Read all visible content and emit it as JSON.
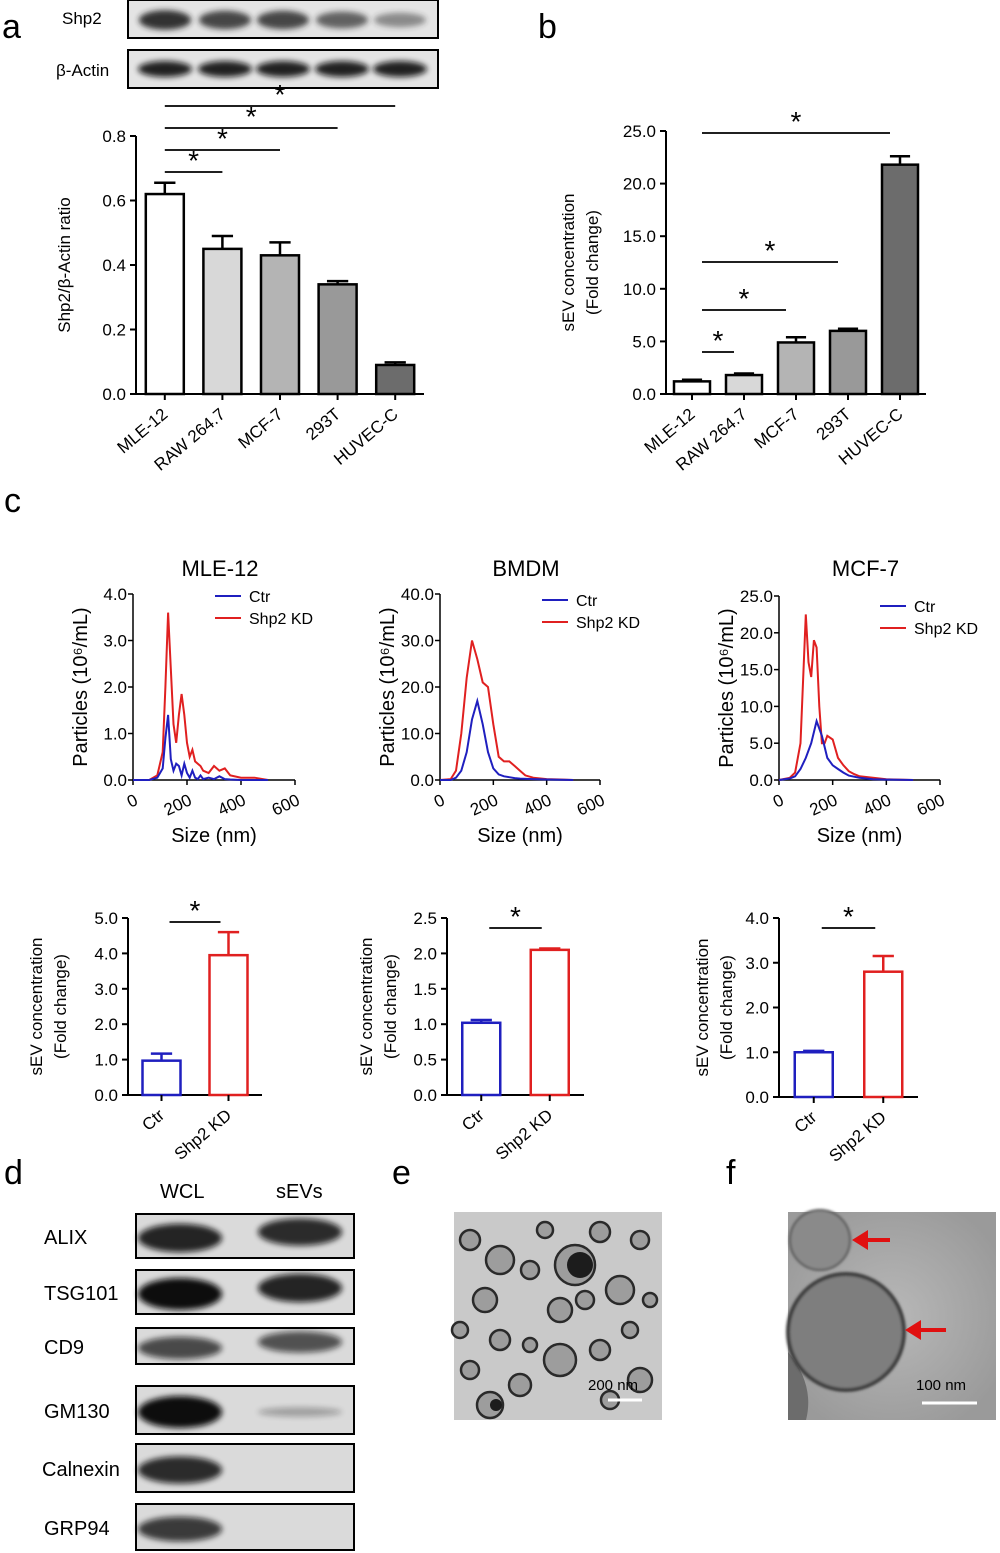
{
  "panel_labels": {
    "a": "a",
    "b": "b",
    "c": "c",
    "d": "d",
    "e": "e",
    "f": "f"
  },
  "colors": {
    "ctr": "#1f1fbf",
    "kd": "#e02020",
    "arrow": "#e01010"
  },
  "blot_a": {
    "rows": [
      "Shp2",
      "β-Actin"
    ]
  },
  "blot_d": {
    "columns": [
      "WCL",
      "sEVs"
    ],
    "rows": [
      "ALIX",
      "TSG101",
      "CD9",
      "GM130",
      "Calnexin",
      "GRP94"
    ],
    "intensity": [
      [
        0.85,
        0.8
      ],
      [
        1.0,
        0.85
      ],
      [
        0.6,
        0.55
      ],
      [
        1.0,
        0.05
      ],
      [
        0.8,
        0.03
      ],
      [
        0.7,
        0.03
      ]
    ]
  },
  "micrographs": {
    "e_scale": "200 nm",
    "f_scale": "100 nm"
  },
  "chart_data": [
    {
      "id": "a",
      "type": "bar",
      "categories": [
        "MLE-12",
        "RAW 264.7",
        "MCF-7",
        "293T",
        "HUVEC-C"
      ],
      "values": [
        0.62,
        0.45,
        0.43,
        0.34,
        0.09
      ],
      "errors": [
        0.035,
        0.04,
        0.04,
        0.01,
        0.008
      ],
      "fills": [
        "#ffffff",
        "#d8d8d8",
        "#b4b4b4",
        "#999999",
        "#6c6c6c"
      ],
      "ylabel": "Shp2/β-Actin ratio",
      "ylim": [
        0,
        0.8
      ],
      "yticks": [
        "0.0",
        "0.2",
        "0.4",
        "0.6",
        "0.8"
      ],
      "significance": [
        {
          "from": 0,
          "to": 1,
          "label": "*"
        },
        {
          "from": 0,
          "to": 2,
          "label": "*"
        },
        {
          "from": 0,
          "to": 3,
          "label": "*"
        },
        {
          "from": 0,
          "to": 4,
          "label": "*"
        }
      ]
    },
    {
      "id": "b",
      "type": "bar",
      "categories": [
        "MLE-12",
        "RAW 264.7",
        "MCF-7",
        "293T",
        "HUVEC-C"
      ],
      "values": [
        1.2,
        1.8,
        4.9,
        6.0,
        21.8
      ],
      "errors": [
        0.15,
        0.15,
        0.5,
        0.2,
        0.8
      ],
      "fills": [
        "#ffffff",
        "#d8d8d8",
        "#b4b4b4",
        "#999999",
        "#6c6c6c"
      ],
      "ylabel": [
        "sEV concentration",
        "(Fold change)"
      ],
      "ylim": [
        0,
        25
      ],
      "yticks": [
        "0.0",
        "5.0",
        "10.0",
        "15.0",
        "20.0",
        "25.0"
      ],
      "significance": [
        {
          "from": 0,
          "to": 1,
          "label": "*"
        },
        {
          "from": 0,
          "to": 2,
          "label": "*"
        },
        {
          "from": 0,
          "to": 3,
          "label": "*"
        },
        {
          "from": 0,
          "to": 4,
          "label": "*"
        }
      ]
    },
    {
      "id": "c1",
      "type": "line",
      "title": "MLE-12",
      "xlabel": "Size (nm)",
      "ylabel": "Particles (10⁶/mL)",
      "xlim": [
        0,
        600
      ],
      "ylim": [
        0,
        4
      ],
      "xticks": [
        "0",
        "200",
        "400",
        "600"
      ],
      "yticks": [
        "0.0",
        "1.0",
        "2.0",
        "3.0",
        "4.0"
      ],
      "series": [
        {
          "name": "Ctr",
          "x": [
            0,
            60,
            90,
            110,
            120,
            130,
            140,
            150,
            160,
            170,
            180,
            190,
            200,
            210,
            220,
            230,
            240,
            250,
            260,
            280,
            300,
            320,
            340,
            360,
            400,
            500
          ],
          "y": [
            0,
            0,
            0.05,
            0.25,
            0.9,
            1.4,
            0.45,
            0.2,
            0.35,
            0.3,
            0.1,
            0.35,
            0.15,
            0.05,
            0.2,
            0.05,
            0.02,
            0.1,
            0.02,
            0.05,
            0.02,
            0.08,
            0.02,
            0.01,
            0,
            0
          ]
        },
        {
          "name": "Shp2 KD",
          "x": [
            0,
            60,
            90,
            110,
            120,
            130,
            140,
            150,
            160,
            170,
            180,
            190,
            200,
            210,
            220,
            230,
            240,
            250,
            260,
            280,
            300,
            320,
            340,
            360,
            400,
            450,
            500
          ],
          "y": [
            0,
            0,
            0.1,
            0.6,
            2.0,
            3.6,
            2.4,
            1.2,
            0.8,
            1.4,
            1.85,
            1.4,
            0.8,
            0.5,
            0.65,
            0.4,
            0.35,
            0.3,
            0.2,
            0.15,
            0.3,
            0.2,
            0.25,
            0.1,
            0.05,
            0.05,
            0
          ]
        }
      ]
    },
    {
      "id": "c2",
      "type": "line",
      "title": "BMDM",
      "xlabel": "Size (nm)",
      "ylabel": "Particles (10⁶/mL)",
      "xlim": [
        0,
        600
      ],
      "ylim": [
        0,
        40
      ],
      "xticks": [
        "0",
        "200",
        "400",
        "600"
      ],
      "yticks": [
        "0.0",
        "10.0",
        "20.0",
        "30.0",
        "40.0"
      ],
      "series": [
        {
          "name": "Ctr",
          "x": [
            0,
            40,
            60,
            80,
            100,
            120,
            140,
            160,
            180,
            200,
            220,
            240,
            260,
            280,
            300,
            350,
            400,
            450,
            500
          ],
          "y": [
            0,
            0,
            0.5,
            2,
            6,
            13,
            17,
            12,
            6,
            2.5,
            1.2,
            0.8,
            0.6,
            0.4,
            0.3,
            0.2,
            0.1,
            0.05,
            0
          ]
        },
        {
          "name": "Shp2 KD",
          "x": [
            0,
            40,
            60,
            80,
            100,
            120,
            140,
            160,
            180,
            200,
            220,
            240,
            260,
            280,
            300,
            320,
            350,
            400,
            450,
            500
          ],
          "y": [
            0,
            0.2,
            2,
            10,
            22,
            30,
            26,
            21,
            20,
            12,
            5,
            4,
            4,
            3,
            2,
            1,
            0.5,
            0.2,
            0.1,
            0
          ]
        }
      ]
    },
    {
      "id": "c3",
      "type": "line",
      "title": "MCF-7",
      "xlabel": "Size (nm)",
      "ylabel": "Particles (10⁶/mL)",
      "xlim": [
        0,
        600
      ],
      "ylim": [
        0,
        25
      ],
      "xticks": [
        "0",
        "200",
        "400",
        "600"
      ],
      "yticks": [
        "0.0",
        "5.0",
        "10.0",
        "15.0",
        "20.0",
        "25.0"
      ],
      "series": [
        {
          "name": "Ctr",
          "x": [
            0,
            40,
            60,
            80,
            100,
            120,
            140,
            160,
            180,
            200,
            220,
            240,
            260,
            300,
            350,
            400,
            500
          ],
          "y": [
            0,
            0.2,
            0.5,
            1.5,
            3,
            5,
            8,
            6,
            3,
            2,
            1.5,
            1,
            0.6,
            0.3,
            0.1,
            0.05,
            0
          ]
        },
        {
          "name": "Shp2 KD",
          "x": [
            0,
            40,
            60,
            80,
            100,
            110,
            120,
            130,
            140,
            150,
            160,
            170,
            180,
            200,
            220,
            240,
            260,
            280,
            300,
            350,
            400,
            500
          ],
          "y": [
            0,
            0.3,
            1,
            5,
            22.5,
            16,
            14,
            19,
            18,
            10,
            5,
            5,
            6,
            5.5,
            3,
            2,
            1.2,
            0.8,
            0.5,
            0.3,
            0.1,
            0
          ]
        }
      ]
    },
    {
      "id": "c4",
      "type": "bar",
      "categories": [
        "Ctr",
        "Shp2  KD"
      ],
      "values": [
        0.97,
        3.95
      ],
      "errors": [
        0.2,
        0.65
      ],
      "ylim": [
        0,
        5
      ],
      "yticks": [
        "0.0",
        "1.0",
        "2.0",
        "3.0",
        "4.0",
        "5.0"
      ],
      "ylabel": [
        "sEV concentration",
        "(Fold change)"
      ],
      "significance": [
        {
          "from": 0,
          "to": 1,
          "label": "*"
        }
      ]
    },
    {
      "id": "c5",
      "type": "bar",
      "categories": [
        "Ctr",
        "Shp2 KD"
      ],
      "values": [
        1.02,
        2.05
      ],
      "errors": [
        0.04,
        0.02
      ],
      "ylim": [
        0,
        2.5
      ],
      "yticks": [
        "0.0",
        "0.5",
        "1.0",
        "1.5",
        "2.0",
        "2.5"
      ],
      "ylabel": [
        "sEV concentration",
        "(Fold change)"
      ],
      "significance": [
        {
          "from": 0,
          "to": 1,
          "label": "*"
        }
      ]
    },
    {
      "id": "c6",
      "type": "bar",
      "categories": [
        "Ctr",
        "Shp2 KD"
      ],
      "values": [
        1.0,
        2.8
      ],
      "errors": [
        0.03,
        0.35
      ],
      "ylim": [
        0,
        4
      ],
      "yticks": [
        "0.0",
        "1.0",
        "2.0",
        "3.0",
        "4.0"
      ],
      "ylabel": [
        "sEV concentration",
        "(Fold change)"
      ],
      "significance": [
        {
          "from": 0,
          "to": 1,
          "label": "*"
        }
      ]
    }
  ]
}
